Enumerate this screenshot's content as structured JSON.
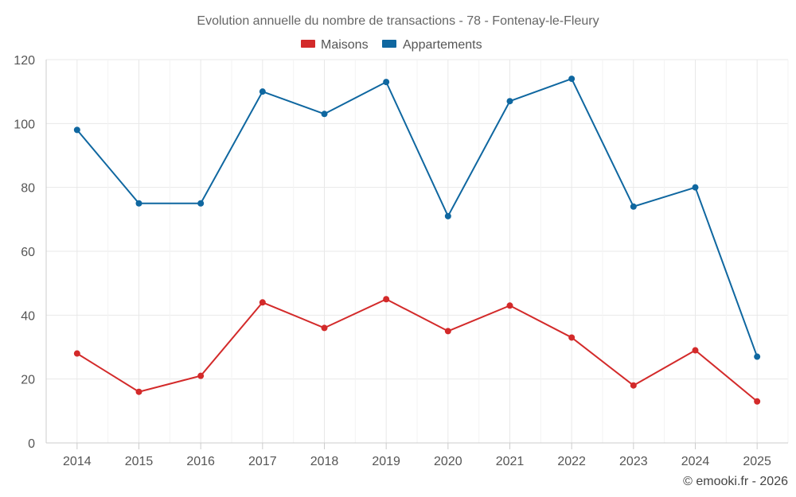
{
  "chart_data": {
    "type": "line",
    "title": "Evolution annuelle du nombre de transactions - 78 - Fontenay-le-Fleury",
    "categories": [
      "2014",
      "2015",
      "2016",
      "2017",
      "2018",
      "2019",
      "2020",
      "2021",
      "2022",
      "2023",
      "2024",
      "2025"
    ],
    "series": [
      {
        "name": "Maisons",
        "color": "#d32a2a",
        "values": [
          28,
          16,
          21,
          44,
          36,
          45,
          35,
          43,
          33,
          18,
          29,
          13
        ]
      },
      {
        "name": "Appartements",
        "color": "#0f67a0",
        "values": [
          98,
          75,
          75,
          110,
          103,
          113,
          71,
          107,
          114,
          74,
          80,
          27
        ]
      }
    ],
    "ylim": [
      0,
      120
    ],
    "yticks": [
      0,
      20,
      40,
      60,
      80,
      100,
      120
    ],
    "xlabel": "",
    "ylabel": "",
    "grid": true,
    "legend_position": "top-center"
  },
  "credit": "© emooki.fr - 2026"
}
